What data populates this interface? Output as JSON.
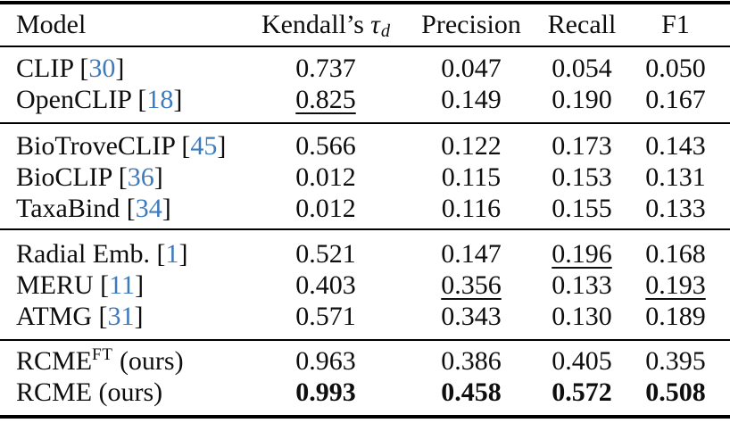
{
  "colors": {
    "citation_link": "#3e7bbd",
    "text": "#0e0e0e",
    "rule": "#000000",
    "background": "#ffffff"
  },
  "header": {
    "model": "Model",
    "kendall_prefix": "Kendall’s",
    "kendall_symbol": "τ",
    "kendall_subscript": "d",
    "precision": "Precision",
    "recall": "Recall",
    "f1": "F1"
  },
  "groups": [
    {
      "rows": [
        {
          "model": [
            {
              "t": "CLIP [",
              "s": "n"
            },
            {
              "t": "30",
              "s": "cite"
            },
            {
              "t": "]",
              "s": "n"
            }
          ],
          "values": [
            {
              "t": "0.737",
              "s": "n"
            },
            {
              "t": "0.047",
              "s": "n"
            },
            {
              "t": "0.054",
              "s": "n"
            },
            {
              "t": "0.050",
              "s": "n"
            }
          ]
        },
        {
          "model": [
            {
              "t": "OpenCLIP [",
              "s": "n"
            },
            {
              "t": "18",
              "s": "cite"
            },
            {
              "t": "]",
              "s": "n"
            }
          ],
          "values": [
            {
              "t": "0.825",
              "s": "u"
            },
            {
              "t": "0.149",
              "s": "n"
            },
            {
              "t": "0.190",
              "s": "n"
            },
            {
              "t": "0.167",
              "s": "n"
            }
          ]
        }
      ]
    },
    {
      "rows": [
        {
          "model": [
            {
              "t": "BioTroveCLIP [",
              "s": "n"
            },
            {
              "t": "45",
              "s": "cite"
            },
            {
              "t": "]",
              "s": "n"
            }
          ],
          "values": [
            {
              "t": "0.566",
              "s": "n"
            },
            {
              "t": "0.122",
              "s": "n"
            },
            {
              "t": "0.173",
              "s": "n"
            },
            {
              "t": "0.143",
              "s": "n"
            }
          ]
        },
        {
          "model": [
            {
              "t": "BioCLIP [",
              "s": "n"
            },
            {
              "t": "36",
              "s": "cite"
            },
            {
              "t": "]",
              "s": "n"
            }
          ],
          "values": [
            {
              "t": "0.012",
              "s": "n"
            },
            {
              "t": "0.115",
              "s": "n"
            },
            {
              "t": "0.153",
              "s": "n"
            },
            {
              "t": "0.131",
              "s": "n"
            }
          ]
        },
        {
          "model": [
            {
              "t": "TaxaBind [",
              "s": "n"
            },
            {
              "t": "34",
              "s": "cite"
            },
            {
              "t": "]",
              "s": "n"
            }
          ],
          "values": [
            {
              "t": "0.012",
              "s": "n"
            },
            {
              "t": "0.116",
              "s": "n"
            },
            {
              "t": "0.155",
              "s": "n"
            },
            {
              "t": "0.133",
              "s": "n"
            }
          ]
        }
      ]
    },
    {
      "rows": [
        {
          "model": [
            {
              "t": "Radial Emb. [",
              "s": "n"
            },
            {
              "t": "1",
              "s": "cite"
            },
            {
              "t": "]",
              "s": "n"
            }
          ],
          "values": [
            {
              "t": "0.521",
              "s": "n"
            },
            {
              "t": "0.147",
              "s": "n"
            },
            {
              "t": "0.196",
              "s": "u"
            },
            {
              "t": "0.168",
              "s": "n"
            }
          ]
        },
        {
          "model": [
            {
              "t": "MERU [",
              "s": "n"
            },
            {
              "t": "11",
              "s": "cite"
            },
            {
              "t": "]",
              "s": "n"
            }
          ],
          "values": [
            {
              "t": "0.403",
              "s": "n"
            },
            {
              "t": "0.356",
              "s": "u"
            },
            {
              "t": "0.133",
              "s": "n"
            },
            {
              "t": "0.193",
              "s": "u"
            }
          ]
        },
        {
          "model": [
            {
              "t": "ATMG [",
              "s": "n"
            },
            {
              "t": "31",
              "s": "cite"
            },
            {
              "t": "]",
              "s": "n"
            }
          ],
          "values": [
            {
              "t": "0.571",
              "s": "n"
            },
            {
              "t": "0.343",
              "s": "n"
            },
            {
              "t": "0.130",
              "s": "n"
            },
            {
              "t": "0.189",
              "s": "n"
            }
          ]
        }
      ]
    },
    {
      "rows": [
        {
          "model": [
            {
              "t": "RCME",
              "s": "n"
            },
            {
              "t": "FT",
              "s": "sup"
            },
            {
              "t": " (ours)",
              "s": "n"
            }
          ],
          "values": [
            {
              "t": "0.963",
              "s": "n"
            },
            {
              "t": "0.386",
              "s": "n"
            },
            {
              "t": "0.405",
              "s": "n"
            },
            {
              "t": "0.395",
              "s": "n"
            }
          ]
        },
        {
          "model": [
            {
              "t": "RCME (ours)",
              "s": "n"
            }
          ],
          "values": [
            {
              "t": "0.993",
              "s": "b"
            },
            {
              "t": "0.458",
              "s": "b"
            },
            {
              "t": "0.572",
              "s": "b"
            },
            {
              "t": "0.508",
              "s": "b"
            }
          ]
        }
      ]
    }
  ]
}
